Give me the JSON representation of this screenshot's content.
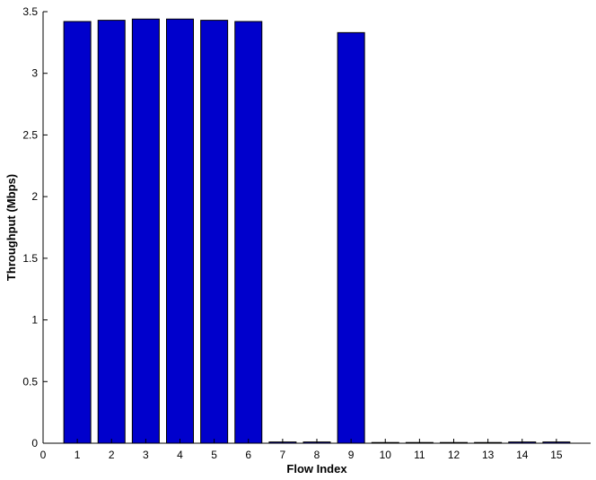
{
  "chart_data": {
    "type": "bar",
    "xlabel": "Flow Index",
    "ylabel": "Throughput (Mbps)",
    "x_ticks": [
      "0",
      "1",
      "2",
      "3",
      "4",
      "5",
      "6",
      "7",
      "8",
      "9",
      "10",
      "11",
      "12",
      "13",
      "14",
      "15"
    ],
    "y_ticks": [
      "0",
      "0.5",
      "1",
      "1.5",
      "2",
      "2.5",
      "3",
      "3.5"
    ],
    "categories": [
      "1",
      "2",
      "3",
      "4",
      "5",
      "6",
      "7",
      "8",
      "9",
      "10",
      "11",
      "12",
      "13",
      "14",
      "15"
    ],
    "values": [
      3.42,
      3.43,
      3.44,
      3.44,
      3.43,
      3.42,
      0.01,
      0.01,
      3.33,
      0.0,
      0.0,
      0.0,
      0.0,
      0.01,
      0.01
    ],
    "xlim": [
      0,
      16
    ],
    "ylim": [
      0,
      3.5
    ],
    "grid": false,
    "bar_color": "#0000cc"
  }
}
